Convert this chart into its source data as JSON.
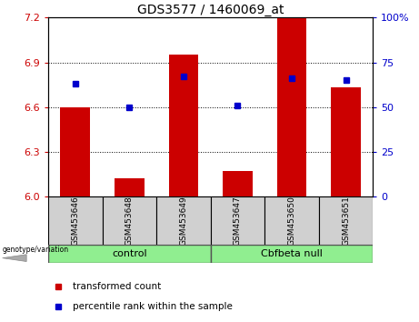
{
  "title": "GDS3577 / 1460069_at",
  "samples": [
    "GSM453646",
    "GSM453648",
    "GSM453649",
    "GSM453647",
    "GSM453650",
    "GSM453651"
  ],
  "red_values": [
    6.6,
    6.12,
    6.95,
    6.17,
    7.2,
    6.73
  ],
  "blue_values": [
    63,
    50,
    67,
    51,
    66,
    65
  ],
  "ylim_left": [
    6.0,
    7.2
  ],
  "ylim_right": [
    0,
    100
  ],
  "yticks_left": [
    6.0,
    6.3,
    6.6,
    6.9,
    7.2
  ],
  "yticks_right": [
    0,
    25,
    50,
    75,
    100
  ],
  "bar_color": "#cc0000",
  "dot_color": "#0000cc",
  "bar_width": 0.55,
  "group_label_prefix": "genotype/variation",
  "legend_red": "transformed count",
  "legend_blue": "percentile rank within the sample",
  "left_tick_color": "#cc0000",
  "right_tick_color": "#0000cc",
  "sample_box_color": "#d0d0d0",
  "group_color": "#90ee90",
  "control_label": "control",
  "cbfbeta_label": "Cbfbeta null"
}
